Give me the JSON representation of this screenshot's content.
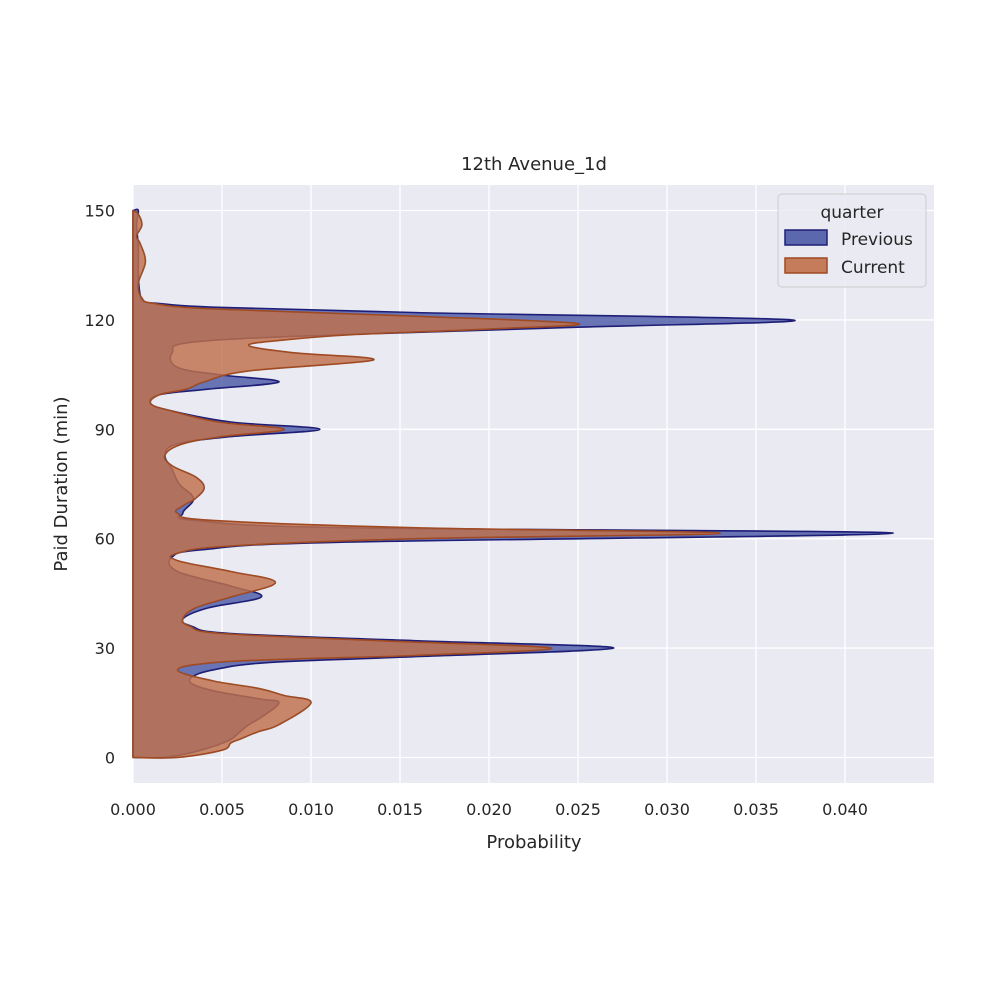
{
  "chart_data": {
    "type": "area",
    "title": "12th Avenue_1d",
    "xlabel": "Probability",
    "ylabel": "Paid Duration (min)",
    "xlim": [
      0.0,
      0.045
    ],
    "ylim": [
      -7,
      157
    ],
    "xticks": [
      0.0,
      0.005,
      0.01,
      0.015,
      0.02,
      0.025,
      0.03,
      0.035,
      0.04
    ],
    "xtick_labels": [
      "0.000",
      "0.005",
      "0.010",
      "0.015",
      "0.020",
      "0.025",
      "0.030",
      "0.035",
      "0.040"
    ],
    "yticks": [
      0,
      30,
      60,
      90,
      120,
      150
    ],
    "ytick_labels": [
      "0",
      "30",
      "60",
      "90",
      "120",
      "150"
    ],
    "grid": true,
    "background": "#eaeaf2",
    "legend": {
      "title": "quarter",
      "placement": "upper-right"
    },
    "series": [
      {
        "name": "Previous",
        "fill": "#4c5aa6",
        "stroke": "#1e1e78",
        "points": [
          [
            0.0,
            0
          ],
          [
            0.0016,
            0
          ],
          [
            0.003,
            1
          ],
          [
            0.0045,
            3
          ],
          [
            0.0055,
            5
          ],
          [
            0.006,
            7
          ],
          [
            0.0065,
            9
          ],
          [
            0.0072,
            11
          ],
          [
            0.0082,
            15
          ],
          [
            0.0072,
            16
          ],
          [
            0.0048,
            18
          ],
          [
            0.0034,
            20
          ],
          [
            0.0033,
            22
          ],
          [
            0.0045,
            24
          ],
          [
            0.0075,
            26
          ],
          [
            0.015,
            27.5
          ],
          [
            0.027,
            30
          ],
          [
            0.016,
            32
          ],
          [
            0.0055,
            34
          ],
          [
            0.0033,
            36
          ],
          [
            0.0028,
            38
          ],
          [
            0.0042,
            41
          ],
          [
            0.0072,
            44
          ],
          [
            0.0055,
            47
          ],
          [
            0.0025,
            51
          ],
          [
            0.0022,
            55
          ],
          [
            0.004,
            57
          ],
          [
            0.0115,
            59
          ],
          [
            0.0427,
            61.5
          ],
          [
            0.012,
            63
          ],
          [
            0.0035,
            65
          ],
          [
            0.0028,
            67
          ],
          [
            0.0034,
            71
          ],
          [
            0.0026,
            75
          ],
          [
            0.0022,
            79
          ],
          [
            0.0018,
            83
          ],
          [
            0.0025,
            86
          ],
          [
            0.0055,
            88
          ],
          [
            0.0105,
            90
          ],
          [
            0.0055,
            92
          ],
          [
            0.0022,
            95
          ],
          [
            0.001,
            97
          ],
          [
            0.0015,
            99.5
          ],
          [
            0.0042,
            101
          ],
          [
            0.0082,
            103
          ],
          [
            0.0048,
            105
          ],
          [
            0.0025,
            107
          ],
          [
            0.0022,
            111
          ],
          [
            0.0035,
            114
          ],
          [
            0.012,
            116
          ],
          [
            0.025,
            118
          ],
          [
            0.037,
            120
          ],
          [
            0.016,
            122
          ],
          [
            0.0045,
            123.5
          ],
          [
            0.0015,
            124.5
          ],
          [
            0.0006,
            125
          ],
          [
            0.0004,
            127
          ],
          [
            0.0003,
            132
          ],
          [
            0.0003,
            140
          ],
          [
            0.0002,
            146
          ],
          [
            0.0003,
            150
          ],
          [
            0.0,
            150
          ]
        ]
      },
      {
        "name": "Current",
        "fill": "#c0704a",
        "stroke": "#a04a22",
        "points": [
          [
            0.0,
            0
          ],
          [
            0.0025,
            0
          ],
          [
            0.005,
            2
          ],
          [
            0.0055,
            4
          ],
          [
            0.006,
            5
          ],
          [
            0.007,
            7
          ],
          [
            0.0082,
            9
          ],
          [
            0.01,
            15
          ],
          [
            0.0085,
            17
          ],
          [
            0.007,
            19
          ],
          [
            0.0045,
            21
          ],
          [
            0.0025,
            24
          ],
          [
            0.0045,
            26
          ],
          [
            0.009,
            27
          ],
          [
            0.016,
            28
          ],
          [
            0.0235,
            30
          ],
          [
            0.014,
            32
          ],
          [
            0.005,
            34
          ],
          [
            0.0032,
            36
          ],
          [
            0.0028,
            38
          ],
          [
            0.0035,
            41
          ],
          [
            0.0055,
            44
          ],
          [
            0.008,
            48
          ],
          [
            0.0055,
            51
          ],
          [
            0.0025,
            54
          ],
          [
            0.0025,
            56
          ],
          [
            0.0055,
            58
          ],
          [
            0.016,
            60
          ],
          [
            0.033,
            61.5
          ],
          [
            0.016,
            63
          ],
          [
            0.0045,
            65
          ],
          [
            0.0025,
            67
          ],
          [
            0.0028,
            69
          ],
          [
            0.0035,
            71
          ],
          [
            0.004,
            74
          ],
          [
            0.0035,
            77
          ],
          [
            0.0022,
            80
          ],
          [
            0.0018,
            83
          ],
          [
            0.0028,
            86
          ],
          [
            0.005,
            88
          ],
          [
            0.0085,
            90
          ],
          [
            0.0048,
            92
          ],
          [
            0.0022,
            95
          ],
          [
            0.001,
            97
          ],
          [
            0.0015,
            99.5
          ],
          [
            0.003,
            101
          ],
          [
            0.004,
            103
          ],
          [
            0.0065,
            106
          ],
          [
            0.0135,
            109
          ],
          [
            0.009,
            111
          ],
          [
            0.0065,
            113
          ],
          [
            0.0085,
            114.5
          ],
          [
            0.0125,
            116
          ],
          [
            0.02,
            117.5
          ],
          [
            0.025,
            119
          ],
          [
            0.016,
            121
          ],
          [
            0.0045,
            123
          ],
          [
            0.0012,
            124.5
          ],
          [
            0.0005,
            126
          ],
          [
            0.0003,
            130
          ],
          [
            0.0007,
            136
          ],
          [
            0.0004,
            141
          ],
          [
            0.0002,
            143
          ],
          [
            0.0005,
            146
          ],
          [
            0.0003,
            149
          ],
          [
            0.0,
            150
          ]
        ]
      }
    ]
  }
}
